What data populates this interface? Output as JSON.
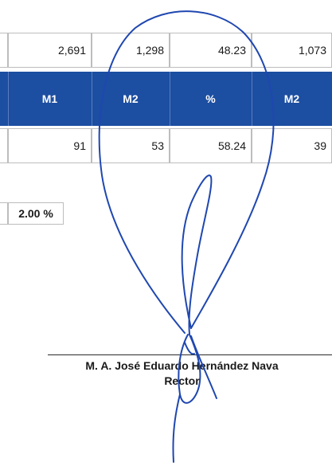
{
  "row1": [
    "2,691",
    "1,298",
    "48.23",
    "1,073"
  ],
  "headers": [
    "M1",
    "M2",
    "%",
    "M2"
  ],
  "row2": [
    "91",
    "53",
    "58.24",
    "39"
  ],
  "percent_box": "2.00 %",
  "signatory": {
    "name": "M. A. José Eduardo Hernández Nava",
    "title": "Rector"
  },
  "colors": {
    "header_bg": "#1c4ea1",
    "signature_ink": "#1f47b0"
  }
}
